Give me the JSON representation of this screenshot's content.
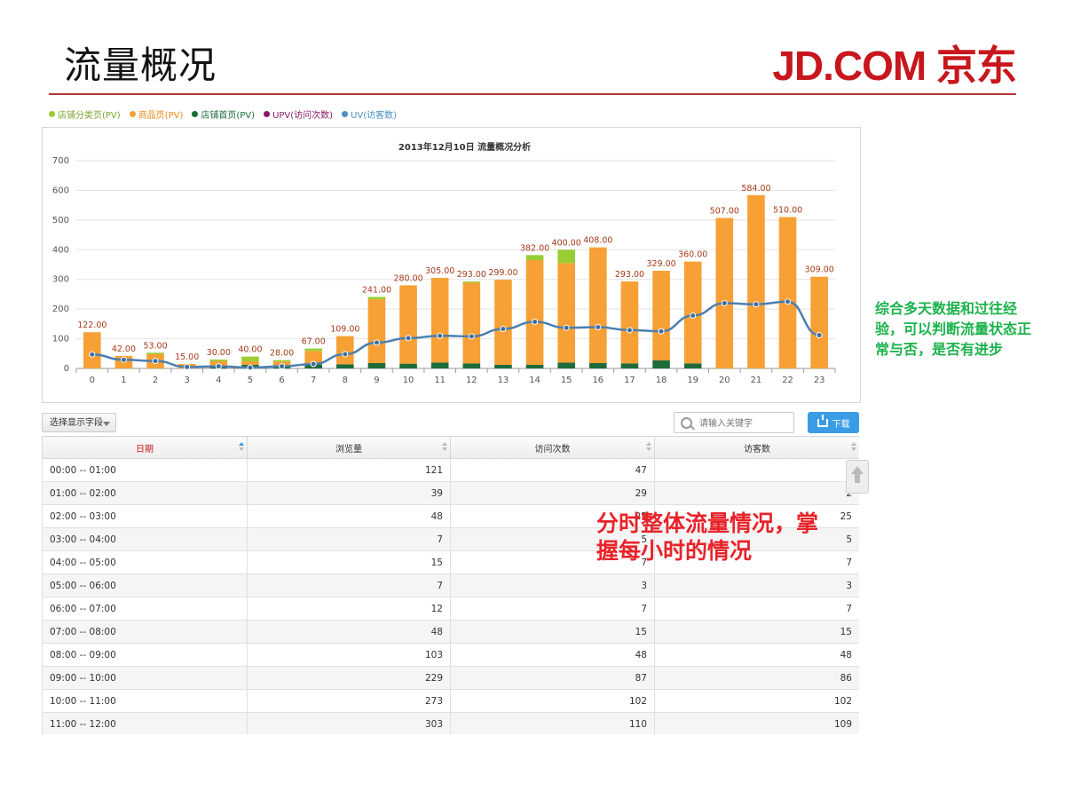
{
  "slide": {
    "title": "流量概况",
    "logo_text": "JD.COM 京东",
    "accent_color": "#b33a3a"
  },
  "legend": [
    {
      "label": "店铺分类页(PV)",
      "color": "#9acd32"
    },
    {
      "label": "商品页(PV)",
      "color": "#f7a035"
    },
    {
      "label": "店铺首页(PV)",
      "color": "#1e6b3a"
    },
    {
      "label": "UPV(访问次数)",
      "color": "#8b1a6b"
    },
    {
      "label": "UV(访客数)",
      "color": "#4a90c0"
    }
  ],
  "toolbar": {
    "field_select_label": "选择显示字段",
    "search_placeholder": "请输入关键字",
    "download_label": "下载"
  },
  "table": {
    "headers": [
      "日期",
      "浏览量",
      "访问次数",
      "访客数"
    ],
    "rows": [
      [
        "00:00 -- 01:00",
        "121",
        "47",
        "4"
      ],
      [
        "01:00 -- 02:00",
        "39",
        "29",
        "2"
      ],
      [
        "02:00 -- 03:00",
        "48",
        "25",
        "25"
      ],
      [
        "03:00 -- 04:00",
        "7",
        "5",
        "5"
      ],
      [
        "04:00 -- 05:00",
        "15",
        "7",
        "7"
      ],
      [
        "05:00 -- 06:00",
        "7",
        "3",
        "3"
      ],
      [
        "06:00 -- 07:00",
        "12",
        "7",
        "7"
      ],
      [
        "07:00 -- 08:00",
        "48",
        "15",
        "15"
      ],
      [
        "08:00 -- 09:00",
        "103",
        "48",
        "48"
      ],
      [
        "09:00 -- 10:00",
        "229",
        "87",
        "86"
      ],
      [
        "10:00 -- 11:00",
        "273",
        "102",
        "102"
      ],
      [
        "11:00 -- 12:00",
        "303",
        "110",
        "109"
      ]
    ]
  },
  "annotations": {
    "table_note": "分时整体流量情况，掌握每小时的情况",
    "side_note": "综合多天数据和过往经验，可以判断流量状态正常与否，是否有进步"
  },
  "chart_data": {
    "type": "bar",
    "title": "2013年12月10日 流量概况分析",
    "categories": [
      "0",
      "1",
      "2",
      "3",
      "4",
      "5",
      "6",
      "7",
      "8",
      "9",
      "10",
      "11",
      "12",
      "13",
      "14",
      "15",
      "16",
      "17",
      "18",
      "19",
      "20",
      "21",
      "22",
      "23"
    ],
    "ylim": [
      0,
      700
    ],
    "yticks": [
      0,
      100,
      200,
      300,
      400,
      500,
      600,
      700
    ],
    "grid": true,
    "legend_position": "top-left",
    "totals": [
      122,
      42,
      53,
      15,
      30,
      40,
      28,
      67,
      109,
      241,
      280,
      305,
      293,
      299,
      382,
      400,
      408,
      293,
      329,
      360,
      507,
      584,
      510,
      309
    ],
    "total_labels": [
      "122.00",
      "42.00",
      "53.00",
      "15.00",
      "30.00",
      "40.00",
      "28.00",
      "67.00",
      "109.00",
      "241.00",
      "280.00",
      "305.00",
      "293.00",
      "299.00",
      "382.00",
      "400.00",
      "408.00",
      "293.00",
      "329.00",
      "360.00",
      "507.00",
      "584.00",
      "510.00",
      "309.00"
    ],
    "series": [
      {
        "name": "店铺首页(PV)",
        "color": "#1e6b3a",
        "values": [
          0,
          0,
          0,
          0,
          5,
          12,
          5,
          14,
          14,
          18,
          16,
          20,
          17,
          12,
          12,
          20,
          18,
          17,
          27,
          17,
          0,
          0,
          0,
          0
        ]
      },
      {
        "name": "商品页(PV)",
        "color": "#f7a035",
        "values": [
          122,
          42,
          48,
          15,
          20,
          12,
          18,
          45,
          95,
          215,
          264,
          285,
          272,
          287,
          353,
          335,
          390,
          276,
          302,
          343,
          507,
          584,
          510,
          309
        ]
      },
      {
        "name": "店铺分类页(PV)",
        "color": "#9acd32",
        "values": [
          0,
          0,
          5,
          0,
          5,
          16,
          5,
          8,
          0,
          8,
          0,
          0,
          4,
          0,
          17,
          45,
          0,
          0,
          0,
          0,
          0,
          0,
          0,
          0
        ]
      },
      {
        "name": "UV(访客数)",
        "type": "line",
        "color": "#4a7fb0",
        "values": [
          47,
          29,
          25,
          5,
          7,
          3,
          7,
          15,
          48,
          87,
          102,
          110,
          108,
          133,
          157,
          137,
          139,
          129,
          125,
          178,
          220,
          216,
          225,
          112
        ]
      }
    ]
  }
}
